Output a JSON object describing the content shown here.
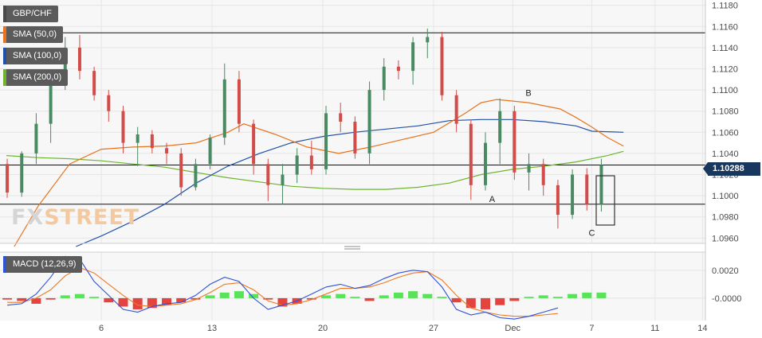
{
  "chart_data": [
    {
      "type": "candlestick",
      "symbol": "GBP/CHF",
      "ylim": [
        1.0955,
        1.1185
      ],
      "y_ticks": [
        "1.1180",
        "1.1160",
        "1.1140",
        "1.1120",
        "1.1100",
        "1.1080",
        "1.1060",
        "1.1040",
        "1.1020",
        "1.1000",
        "1.0980",
        "1.0960"
      ],
      "x_ticks": [
        {
          "t": 6,
          "label": "6"
        },
        {
          "t": 13,
          "label": "13"
        },
        {
          "t": 20,
          "label": "20"
        },
        {
          "t": 27,
          "label": "27"
        },
        {
          "t": 32,
          "label": "Dec"
        },
        {
          "t": 37,
          "label": "7"
        },
        {
          "t": 41,
          "label": "11"
        },
        {
          "t": 44,
          "label": "14"
        }
      ],
      "current_price": "1.10288",
      "current_value": 1.10288,
      "levels": [
        1.1154,
        1.1029,
        1.0992
      ],
      "legend": [
        {
          "name": "GBP/CHF",
          "color": "#5b5b5b"
        },
        {
          "name": "SMA (50,0)",
          "color": "#e8731c"
        },
        {
          "name": "SMA (100,0)",
          "color": "#2150a8"
        },
        {
          "name": "SMA (200,0)",
          "color": "#6cb52d"
        }
      ],
      "annotations": [
        {
          "label": "A",
          "t": 30.7,
          "value": 1.1001
        },
        {
          "label": "B",
          "t": 33.0,
          "value": 1.1092
        },
        {
          "label": "C",
          "t": 37.0,
          "value": 1.0969
        }
      ],
      "candles": [
        [
          1.103,
          1.1035,
          1.0998,
          1.1003
        ],
        [
          1.1003,
          1.1042,
          1.0999,
          1.104
        ],
        [
          1.104,
          1.1078,
          1.103,
          1.1068
        ],
        [
          1.1068,
          1.111,
          1.105,
          1.1105
        ],
        [
          1.1105,
          1.115,
          1.11,
          1.114
        ],
        [
          1.114,
          1.1152,
          1.111,
          1.1118
        ],
        [
          1.1118,
          1.1122,
          1.109,
          1.1095
        ],
        [
          1.1095,
          1.11,
          1.107,
          1.108
        ],
        [
          1.108,
          1.1085,
          1.104,
          1.105
        ],
        [
          1.105,
          1.1065,
          1.1028,
          1.1058
        ],
        [
          1.1058,
          1.1062,
          1.104,
          1.1045
        ],
        [
          1.1045,
          1.105,
          1.103,
          1.104
        ],
        [
          1.104,
          1.1045,
          1.1,
          1.1008
        ],
        [
          1.1008,
          1.1035,
          1.1005,
          1.103
        ],
        [
          1.103,
          1.1058,
          1.1025,
          1.1055
        ],
        [
          1.1055,
          1.1125,
          1.1048,
          1.111
        ],
        [
          1.111,
          1.1118,
          1.106,
          1.1068
        ],
        [
          1.1068,
          1.1072,
          1.102,
          1.103
        ],
        [
          1.103,
          1.1035,
          1.0995,
          1.101
        ],
        [
          1.101,
          1.103,
          1.0992,
          1.102
        ],
        [
          1.102,
          1.1045,
          1.1012,
          1.1038
        ],
        [
          1.1038,
          1.1052,
          1.102,
          1.1025
        ],
        [
          1.1025,
          1.1085,
          1.102,
          1.1078
        ],
        [
          1.1078,
          1.1088,
          1.106,
          1.107
        ],
        [
          1.107,
          1.1075,
          1.1035,
          1.104
        ],
        [
          1.104,
          1.1108,
          1.103,
          1.11
        ],
        [
          1.11,
          1.113,
          1.109,
          1.1122
        ],
        [
          1.1122,
          1.1128,
          1.111,
          1.1118
        ],
        [
          1.1118,
          1.115,
          1.1105,
          1.1145
        ],
        [
          1.1145,
          1.1158,
          1.113,
          1.115
        ],
        [
          1.115,
          1.1155,
          1.109,
          1.1095
        ],
        [
          1.1095,
          1.11,
          1.106,
          1.1068
        ],
        [
          1.1068,
          1.1072,
          1.0996,
          1.101
        ],
        [
          1.101,
          1.106,
          1.1005,
          1.105
        ],
        [
          1.105,
          1.1092,
          1.103,
          1.108
        ],
        [
          1.108,
          1.1085,
          1.1015,
          1.1022
        ],
        [
          1.1022,
          1.104,
          1.1005,
          1.103
        ],
        [
          1.103,
          1.1035,
          1.1,
          1.101
        ],
        [
          1.101,
          1.1015,
          1.0969,
          1.0982
        ],
        [
          1.0982,
          1.1025,
          1.0978,
          1.102
        ],
        [
          1.102,
          1.1026,
          1.0986,
          1.0992
        ],
        [
          1.0992,
          1.1035,
          1.0985,
          1.1029
        ]
      ],
      "sma50": [
        [
          0.5,
          1.0952
        ],
        [
          2,
          1.099
        ],
        [
          4,
          1.103
        ],
        [
          6,
          1.1044
        ],
        [
          8,
          1.1046
        ],
        [
          10,
          1.1047
        ],
        [
          12,
          1.105
        ],
        [
          14,
          1.106
        ],
        [
          15,
          1.1068
        ],
        [
          17,
          1.1058
        ],
        [
          19,
          1.1046
        ],
        [
          21,
          1.104
        ],
        [
          23,
          1.1046
        ],
        [
          25,
          1.1053
        ],
        [
          27,
          1.106
        ],
        [
          29,
          1.1078
        ],
        [
          30,
          1.1088
        ],
        [
          31,
          1.1091
        ],
        [
          33,
          1.1088
        ],
        [
          35,
          1.1082
        ],
        [
          36,
          1.1074
        ],
        [
          37,
          1.1065
        ],
        [
          38,
          1.1055
        ],
        [
          39,
          1.1047
        ]
      ],
      "sma100": [
        [
          4.4,
          1.0952
        ],
        [
          6,
          1.0962
        ],
        [
          8,
          1.0976
        ],
        [
          10,
          1.0992
        ],
        [
          12,
          1.1012
        ],
        [
          14,
          1.1028
        ],
        [
          16,
          1.104
        ],
        [
          18,
          1.105
        ],
        [
          20,
          1.1056
        ],
        [
          22,
          1.106
        ],
        [
          24,
          1.1063
        ],
        [
          26,
          1.1066
        ],
        [
          28,
          1.1071
        ],
        [
          30,
          1.1072
        ],
        [
          32,
          1.1072
        ],
        [
          34,
          1.107
        ],
        [
          36,
          1.1066
        ],
        [
          37,
          1.1061
        ],
        [
          39,
          1.106
        ]
      ],
      "sma200": [
        [
          0,
          1.1038
        ],
        [
          2,
          1.1036
        ],
        [
          4,
          1.1035
        ],
        [
          6,
          1.1033
        ],
        [
          8,
          1.103
        ],
        [
          10,
          1.1027
        ],
        [
          12,
          1.1022
        ],
        [
          14,
          1.1017
        ],
        [
          16,
          1.1013
        ],
        [
          18,
          1.1009
        ],
        [
          20,
          1.1007
        ],
        [
          22,
          1.1006
        ],
        [
          24,
          1.1006
        ],
        [
          26,
          1.1008
        ],
        [
          28,
          1.1012
        ],
        [
          30,
          1.102
        ],
        [
          32,
          1.1025
        ],
        [
          34,
          1.1028
        ],
        [
          36,
          1.1032
        ],
        [
          38,
          1.1038
        ],
        [
          39,
          1.1042
        ]
      ]
    },
    {
      "type": "macd",
      "legend": "MACD (12,26,9)",
      "ylim": [
        -0.0016,
        0.0033
      ],
      "y_ticks": [
        "0.0020",
        "-0.0000"
      ],
      "histogram": [
        -0.0001,
        -0.0002,
        -0.0004,
        -0.0001,
        0.0002,
        0.0003,
        0.0001,
        -0.0003,
        -0.0006,
        -0.0008,
        -0.0007,
        -0.0005,
        -0.0003,
        -0.0001,
        0.0002,
        0.0004,
        0.0005,
        0.0003,
        -0.0001,
        -0.0006,
        -0.0004,
        -0.0001,
        0.0002,
        0.0003,
        0.0001,
        -0.0002,
        0.0002,
        0.0004,
        0.0005,
        0.0003,
        0.0001,
        -0.0003,
        -0.0007,
        -0.0008,
        -0.0005,
        -0.0002,
        0.0001,
        0.0002,
        0.0001,
        0.0003,
        0.0004,
        0.0004
      ],
      "macd": [
        -0.0005,
        -0.0004,
        0.0003,
        0.0015,
        0.003,
        0.0028,
        0.0012,
        0.0002,
        -0.0008,
        -0.001,
        -0.0006,
        -0.0004,
        -0.0003,
        0.0002,
        0.001,
        0.0015,
        0.0012,
        0.0,
        -0.0008,
        -0.0005,
        -0.0002,
        0.0003,
        0.0008,
        0.001,
        0.0007,
        0.0009,
        0.0014,
        0.0018,
        0.002,
        0.0019,
        0.0008,
        -0.0008,
        -0.0012,
        -0.001,
        -0.0014,
        -0.0015,
        -0.0013,
        -0.001,
        -0.0007
      ],
      "signal": [
        -0.0003,
        -0.0003,
        0.0,
        0.0006,
        0.0016,
        0.0022,
        0.0018,
        0.001,
        0.0002,
        -0.0005,
        -0.0006,
        -0.0005,
        -0.0004,
        -0.0001,
        0.0004,
        0.001,
        0.0011,
        0.0006,
        -0.0002,
        -0.0005,
        -0.0004,
        -0.0001,
        0.0003,
        0.0007,
        0.0007,
        0.0008,
        0.0011,
        0.0015,
        0.0018,
        0.0019,
        0.0013,
        0.0002,
        -0.0007,
        -0.001,
        -0.0012,
        -0.0013,
        -0.0013,
        -0.0012,
        -0.0011
      ]
    }
  ],
  "watermark": {
    "part1": "FX",
    "part2": "STREET"
  },
  "colors": {
    "up": "#4a8a63",
    "down": "#d24d49",
    "hist_up": "#3ddf3d",
    "hist_down": "#e0241f",
    "macd": "#2f52d8",
    "signal": "#ee7a22",
    "grid": "#e6e6e6",
    "axis_text": "#4a4a4a"
  }
}
